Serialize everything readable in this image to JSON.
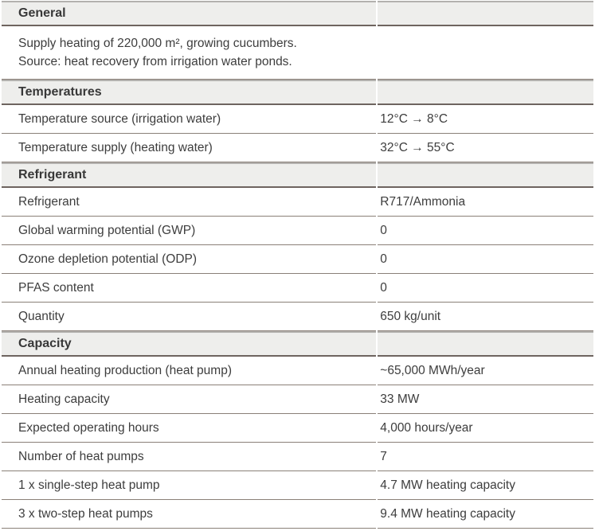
{
  "document": {
    "type": "specification-table",
    "colors": {
      "text": "#3d3d3d",
      "section_header_background": "#eeeeec",
      "section_header_border_top": "#b3b1ae",
      "section_header_border_bottom": "#6e645f",
      "row_divider": "#8a8078",
      "page_background": "#ffffff"
    },
    "sections": [
      {
        "title": "General",
        "description_lines": [
          "Supply heating of 220,000 m², growing cucumbers.",
          "Source: heat recovery from irrigation water ponds."
        ],
        "rows": []
      },
      {
        "title": "Temperatures",
        "rows": [
          {
            "label": "Temperature source (irrigation water)",
            "value": "12°C → 8°C"
          },
          {
            "label": "Temperature supply (heating water)",
            "value": "32°C → 55°C"
          }
        ]
      },
      {
        "title": "Refrigerant",
        "rows": [
          {
            "label": "Refrigerant",
            "value": "R717/Ammonia"
          },
          {
            "label": "Global warming potential (GWP)",
            "value": "0"
          },
          {
            "label": "Ozone depletion potential (ODP)",
            "value": "0"
          },
          {
            "label": "PFAS content",
            "value": "0"
          },
          {
            "label": "Quantity",
            "value": "650 kg/unit"
          }
        ]
      },
      {
        "title": "Capacity",
        "rows": [
          {
            "label": "Annual heating production (heat pump)",
            "value": "~65,000 MWh/year"
          },
          {
            "label": "Heating capacity",
            "value": "33 MW"
          },
          {
            "label": "Expected operating hours",
            "value": "4,000 hours/year"
          },
          {
            "label": "Number of heat pumps",
            "value": "7"
          },
          {
            "label": "1 x single-step heat pump",
            "value": "4.7 MW heating capacity"
          },
          {
            "label": "3 x two-step heat pumps",
            "value": "9.4 MW heating capacity"
          }
        ]
      }
    ]
  }
}
